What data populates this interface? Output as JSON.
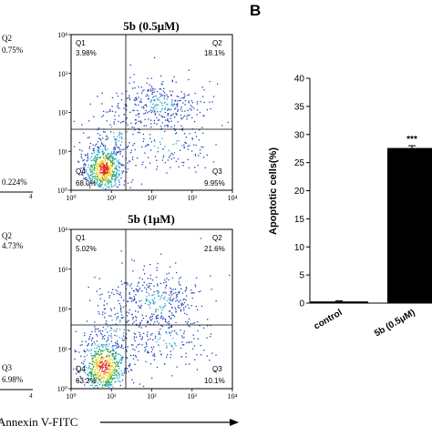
{
  "flow_panels": [
    {
      "title": "5b (0.5μM)",
      "quadrants": {
        "q1": "Q1",
        "q2": "Q2",
        "q3": "Q3",
        "q4": "Q4"
      },
      "values": {
        "q1": "3.98%",
        "q2": "18.1%",
        "q3": "9.95%",
        "q4": "68.0%"
      },
      "yticks": [
        "10⁴",
        "10³",
        "10²",
        "10¹",
        "10⁰"
      ],
      "xticks": [
        "10⁰",
        "10¹",
        "10²",
        "10³",
        "10⁴"
      ]
    },
    {
      "title": "5b (1μM)",
      "quadrants": {
        "q1": "Q1",
        "q2": "Q2",
        "q3": "Q3",
        "q4": "Q4"
      },
      "values": {
        "q1": "5.02%",
        "q2": "21.6%",
        "q3": "10.1%",
        "q4": "63.2%"
      },
      "yticks": [
        "10⁴",
        "10³",
        "10²",
        "10¹",
        "10⁰"
      ],
      "xticks": [
        "10⁰",
        "10¹",
        "10²",
        "10³",
        "10⁴"
      ]
    }
  ],
  "left_partial": {
    "top": {
      "q2": "Q2",
      "q2_val": "0.75%",
      "q3_val": "0.224%"
    },
    "bottom": {
      "q2": "Q2",
      "q2_val": "4.73%",
      "q3": "Q3",
      "q3_val": "6.98%"
    },
    "tick_4": "4"
  },
  "x_axis_label": "Annexin V-FITC",
  "panel_letter": "B",
  "chart_data": {
    "type": "bar",
    "categories": [
      "control",
      "5b (0.5μM)"
    ],
    "values": [
      0.3,
      27.6
    ],
    "error": [
      0.1,
      0.4
    ],
    "significance": [
      "",
      "***"
    ],
    "ylabel": "Apoptotic cells(%)",
    "ylim": [
      0,
      40
    ],
    "yticks": [
      "0",
      "5",
      "10",
      "15",
      "20",
      "25",
      "30",
      "35",
      "40"
    ],
    "bar_colors": [
      "#000000",
      "#000000"
    ]
  }
}
